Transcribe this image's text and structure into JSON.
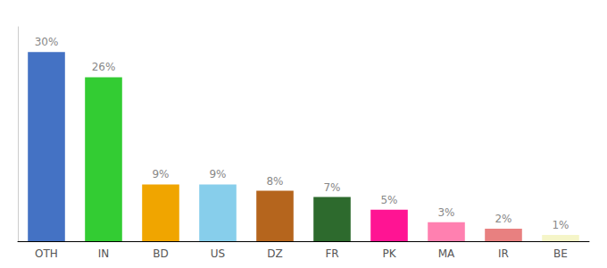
{
  "chart_data": {
    "type": "bar",
    "categories": [
      "OTH",
      "IN",
      "BD",
      "US",
      "DZ",
      "FR",
      "PK",
      "MA",
      "IR",
      "BE"
    ],
    "values": [
      30,
      26,
      9,
      9,
      8,
      7,
      5,
      3,
      2,
      1
    ],
    "value_labels": [
      "30%",
      "26%",
      "9%",
      "9%",
      "8%",
      "7%",
      "5%",
      "3%",
      "2%",
      "1%"
    ],
    "colors": [
      "#4472c4",
      "#33cc33",
      "#f0a500",
      "#87ceeb",
      "#b5651d",
      "#2d6a2d",
      "#ff1493",
      "#ff80b0",
      "#e88080",
      "#f5f5c8"
    ],
    "ylim": [
      0,
      34
    ],
    "data_labels": true,
    "tick_labels": "x",
    "grid": false
  }
}
